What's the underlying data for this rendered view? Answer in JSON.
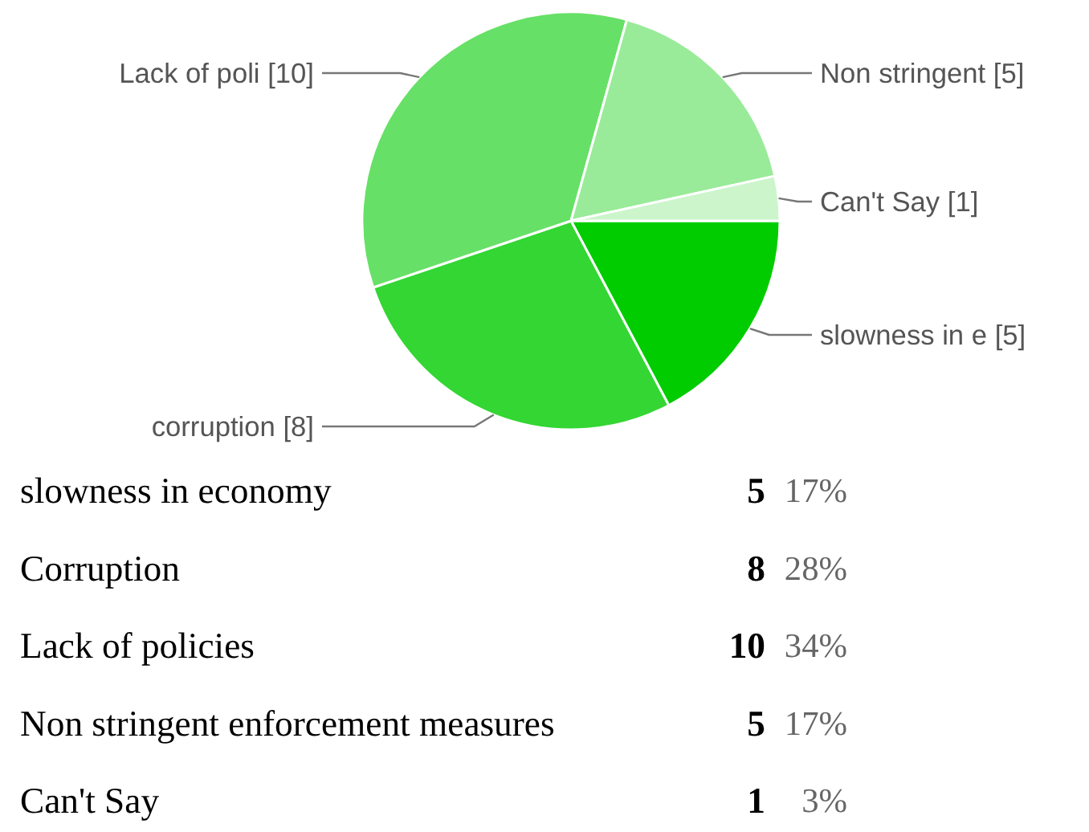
{
  "chart_data": [
    {
      "type": "pie",
      "categories": [
        null,
        null,
        null,
        null,
        null
      ],
      "values": [
        5,
        8,
        10,
        5,
        1
      ],
      "colors": [
        "#00cc00",
        "#33d633",
        "#66e066",
        "#99eb99",
        "#ccf5cc"
      ],
      "value_labels": [
        "slowness in e [5]",
        "corruption [8]",
        "Lack of poli [10]",
        "Non stringent [5]",
        "Can't Say [1]"
      ]
    },
    {
      "type": "other",
      "annotations": [
        "slowness in economy",
        "5",
        "17%",
        "Corruption",
        "8",
        "28%",
        "Lack of policies",
        "10",
        "34%",
        "Non stringent enforcement measures",
        "5",
        "17%",
        "Can't Say",
        "1",
        "3%"
      ]
    }
  ]
}
